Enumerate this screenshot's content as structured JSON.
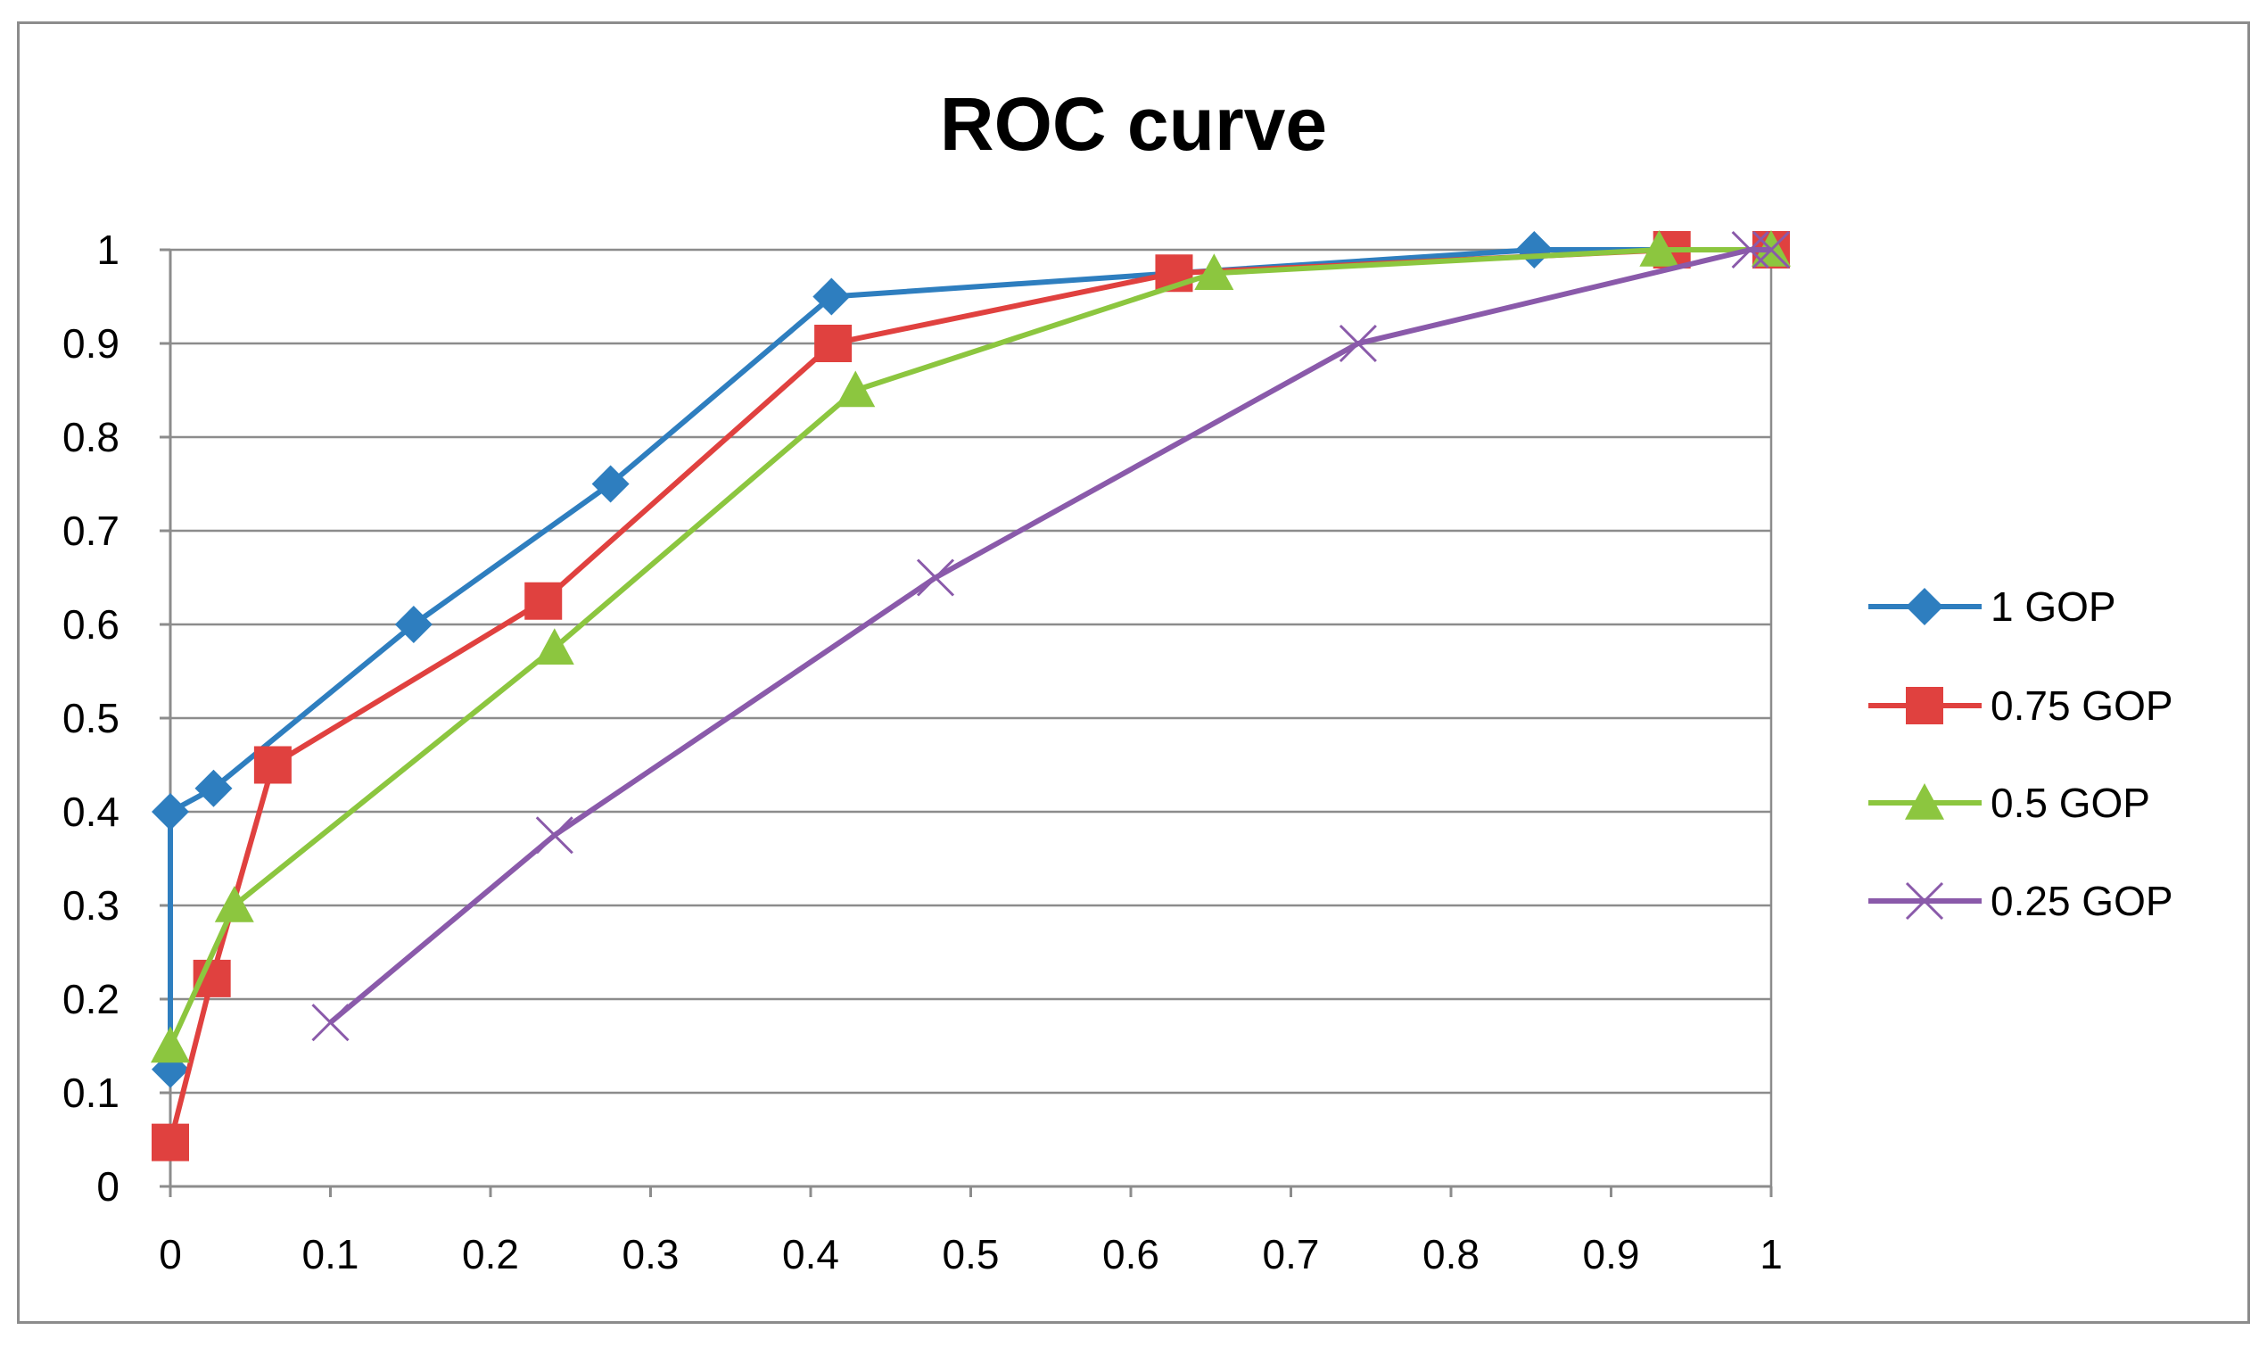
{
  "chart_data": {
    "type": "line",
    "title": "ROC curve",
    "xlabel": "",
    "ylabel": "",
    "xlim": [
      0,
      1
    ],
    "ylim": [
      0,
      1
    ],
    "xticks": [
      0,
      0.1,
      0.2,
      0.3,
      0.4,
      0.5,
      0.6,
      0.7,
      0.8,
      0.9,
      1
    ],
    "xtick_labels": [
      "0",
      "0.1",
      "0.2",
      "0.3",
      "0.4",
      "0.5",
      "0.6",
      "0.7",
      "0.8",
      "0.9",
      "1"
    ],
    "yticks": [
      0,
      0.1,
      0.2,
      0.3,
      0.4,
      0.5,
      0.6,
      0.7,
      0.8,
      0.9,
      1
    ],
    "ytick_labels": [
      "0",
      "0.1",
      "0.2",
      "0.3",
      "0.4",
      "0.5",
      "0.6",
      "0.7",
      "0.8",
      "0.9",
      "1"
    ],
    "grid": "horizontal",
    "legend_position": "right",
    "series": [
      {
        "name": "1 GOP",
        "color": "#2e7ebf",
        "marker": "diamond",
        "x": [
          0,
          0,
          0.027,
          0.152,
          0.275,
          0.413,
          0.627,
          0.852,
          1
        ],
        "y": [
          0.125,
          0.4,
          0.425,
          0.6,
          0.75,
          0.95,
          0.975,
          1,
          1
        ]
      },
      {
        "name": "0.75 GOP",
        "color": "#e0413f",
        "marker": "square",
        "x": [
          0,
          0.026,
          0.064,
          0.233,
          0.414,
          0.627,
          0.938,
          1
        ],
        "y": [
          0.047,
          0.222,
          0.45,
          0.625,
          0.9,
          0.975,
          1,
          1
        ]
      },
      {
        "name": "0.5 GOP",
        "color": "#8cc63f",
        "marker": "triangle",
        "x": [
          0,
          0.04,
          0.24,
          0.428,
          0.652,
          0.93,
          1
        ],
        "y": [
          0.15,
          0.3,
          0.575,
          0.85,
          0.975,
          1,
          1
        ]
      },
      {
        "name": "0.25 GOP",
        "color": "#8a5aaa",
        "marker": "x",
        "x": [
          0.1,
          0.24,
          0.478,
          0.742,
          0.987,
          1
        ],
        "y": [
          0.175,
          0.375,
          0.65,
          0.9,
          1,
          1
        ]
      }
    ]
  }
}
